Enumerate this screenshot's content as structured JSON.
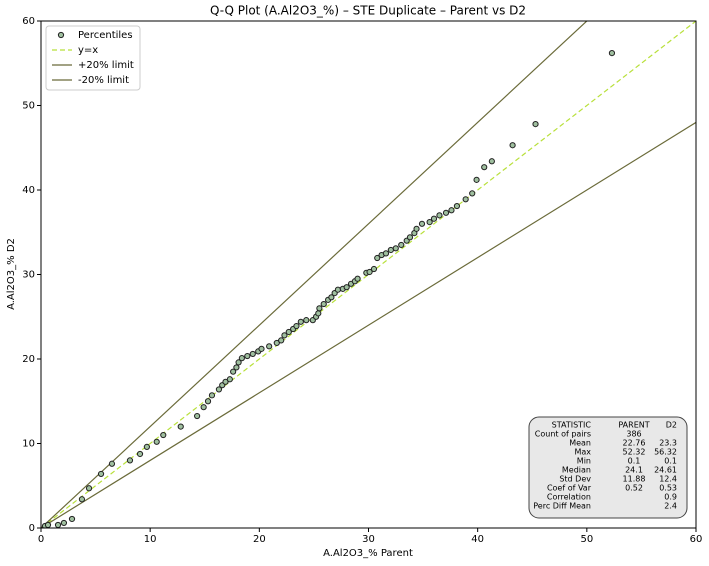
{
  "chart_data": {
    "type": "scatter",
    "title": "Q-Q Plot (A.Al2O3_%) – STE Duplicate – Parent vs D2",
    "xlabel": "A.Al2O3_% Parent",
    "ylabel": "A.Al2O3_% D2",
    "xlim": [
      0,
      60
    ],
    "ylim": [
      0,
      60
    ],
    "xticks": [
      0,
      10,
      20,
      30,
      40,
      50,
      60
    ],
    "yticks": [
      0,
      10,
      20,
      30,
      40,
      50,
      60
    ],
    "legend": "upper left",
    "series": [
      {
        "name": "Percentiles",
        "type": "scatter",
        "color": "#9fbf9f",
        "x": [
          0.37,
          0.64,
          1.56,
          2.1,
          2.84,
          3.75,
          4.4,
          5.5,
          6.5,
          8.15,
          9.07,
          9.7,
          10.6,
          11.2,
          12.8,
          14.3,
          14.9,
          15.3,
          15.66,
          16.3,
          16.6,
          16.9,
          17.3,
          17.6,
          17.9,
          18.1,
          18.4,
          18.9,
          19.4,
          19.9,
          20.2,
          20.9,
          21.6,
          22.0,
          22.3,
          22.7,
          23.1,
          23.4,
          23.8,
          24.3,
          24.9,
          25.2,
          25.4,
          25.5,
          25.9,
          26.3,
          26.6,
          26.9,
          27.2,
          27.65,
          28.0,
          28.4,
          28.75,
          29.0,
          29.8,
          30.1,
          30.5,
          30.8,
          31.2,
          31.6,
          32.05,
          32.5,
          33.0,
          33.5,
          33.8,
          34.2,
          34.4,
          34.9,
          35.6,
          36.0,
          36.5,
          37.1,
          37.6,
          38.1,
          38.9,
          39.5,
          39.9,
          40.6,
          41.3,
          43.2,
          45.3,
          52.3
        ],
        "values": [
          0.24,
          0.36,
          0.36,
          0.6,
          1.07,
          3.4,
          4.7,
          6.4,
          7.6,
          8.0,
          8.76,
          9.6,
          10.2,
          11.0,
          12.0,
          13.25,
          14.3,
          15.0,
          15.7,
          16.4,
          16.9,
          17.3,
          17.6,
          18.5,
          19.0,
          19.6,
          20.1,
          20.35,
          20.6,
          20.9,
          21.2,
          21.5,
          21.9,
          22.2,
          22.8,
          23.2,
          23.55,
          23.9,
          24.4,
          24.6,
          24.6,
          25.0,
          25.4,
          26.0,
          26.5,
          27.0,
          27.3,
          27.8,
          28.2,
          28.3,
          28.5,
          28.9,
          29.2,
          29.5,
          30.2,
          30.3,
          30.65,
          31.95,
          32.3,
          32.5,
          32.9,
          33.1,
          33.5,
          34.0,
          34.4,
          34.9,
          35.4,
          36.0,
          36.2,
          36.6,
          37.0,
          37.3,
          37.6,
          38.1,
          38.9,
          39.6,
          41.2,
          42.7,
          43.4,
          45.3,
          47.8,
          56.2
        ]
      },
      {
        "name": "y=x",
        "type": "line",
        "dash": true,
        "color": "#b8e03a",
        "x": [
          0,
          60
        ],
        "values": [
          0,
          60
        ]
      },
      {
        "name": "+20% limit",
        "type": "line",
        "color": "#6b6b3a",
        "x": [
          0,
          60
        ],
        "values": [
          0,
          72
        ]
      },
      {
        "name": "-20% limit",
        "type": "line",
        "color": "#6b6b3a",
        "x": [
          0,
          60
        ],
        "values": [
          0,
          48
        ]
      }
    ],
    "stats_table": {
      "columns": [
        "STATISTIC",
        "PARENT",
        "D2"
      ],
      "rows": [
        [
          "Count of pairs",
          386,
          null
        ],
        [
          "Mean",
          22.76,
          23.3
        ],
        [
          "Max",
          52.32,
          56.32
        ],
        [
          "Min",
          0.1,
          0.1
        ],
        [
          "Median",
          24.1,
          24.61
        ],
        [
          "Std Dev",
          11.88,
          12.4
        ],
        [
          "Coef of Var",
          0.52,
          0.53
        ],
        [
          "Correlation",
          null,
          0.9
        ],
        [
          "Perc Diff Mean",
          null,
          2.4
        ]
      ]
    }
  }
}
